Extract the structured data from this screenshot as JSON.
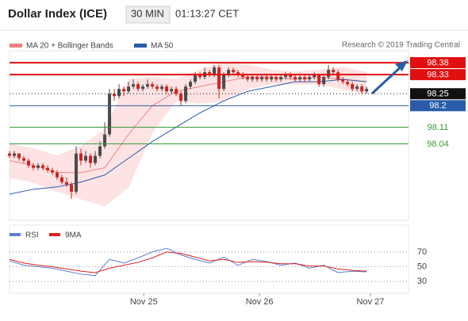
{
  "chart_data": [
    {
      "type": "candlestick",
      "title": "Dollar Index (ICE)",
      "interval": "30 MIN",
      "time": "01:13:27 CET",
      "credit": "Research © 2019 Trading Central",
      "xlim": [
        0,
        83.8
      ],
      "ylim": [
        97.72,
        98.43
      ],
      "up_color": "#4a4a4a",
      "down_color": "#d42020",
      "candles": [
        [
          98.0,
          98.01,
          97.98,
          97.99
        ],
        [
          97.99,
          98.01,
          97.98,
          98.0
        ],
        [
          98.0,
          98.0,
          97.97,
          97.98
        ],
        [
          97.98,
          97.99,
          97.96,
          97.97
        ],
        [
          97.97,
          97.98,
          97.94,
          97.95
        ],
        [
          97.95,
          97.96,
          97.93,
          97.94
        ],
        [
          97.94,
          97.96,
          97.93,
          97.95
        ],
        [
          97.95,
          97.96,
          97.93,
          97.94
        ],
        [
          97.94,
          97.95,
          97.92,
          97.93
        ],
        [
          97.93,
          97.94,
          97.91,
          97.92
        ],
        [
          97.92,
          97.93,
          97.89,
          97.9
        ],
        [
          97.9,
          97.91,
          97.87,
          97.88
        ],
        [
          97.88,
          97.9,
          97.86,
          97.87
        ],
        [
          97.87,
          97.88,
          97.81,
          97.84
        ],
        [
          97.84,
          98.03,
          97.83,
          98.0
        ],
        [
          98.0,
          98.02,
          97.95,
          97.97
        ],
        [
          97.97,
          98.01,
          97.96,
          97.99
        ],
        [
          97.99,
          98.0,
          97.94,
          97.96
        ],
        [
          97.96,
          98.01,
          97.95,
          97.99
        ],
        [
          97.99,
          98.05,
          97.98,
          98.03
        ],
        [
          98.03,
          98.13,
          98.02,
          98.08
        ],
        [
          98.08,
          98.27,
          98.07,
          98.25
        ],
        [
          98.25,
          98.27,
          98.22,
          98.24
        ],
        [
          98.24,
          98.29,
          98.23,
          98.27
        ],
        [
          98.27,
          98.28,
          98.24,
          98.26
        ],
        [
          98.26,
          98.3,
          98.25,
          98.28
        ],
        [
          98.28,
          98.31,
          98.27,
          98.29
        ],
        [
          98.29,
          98.3,
          98.26,
          98.27
        ],
        [
          98.27,
          98.29,
          98.26,
          98.28
        ],
        [
          98.28,
          98.31,
          98.27,
          98.29
        ],
        [
          98.29,
          98.3,
          98.27,
          98.28
        ],
        [
          98.28,
          98.29,
          98.26,
          98.27
        ],
        [
          98.27,
          98.29,
          98.26,
          98.28
        ],
        [
          98.28,
          98.29,
          98.25,
          98.26
        ],
        [
          98.26,
          98.28,
          98.25,
          98.27
        ],
        [
          98.27,
          98.28,
          98.24,
          98.25
        ],
        [
          98.25,
          98.26,
          98.2,
          98.22
        ],
        [
          98.22,
          98.29,
          98.21,
          98.28
        ],
        [
          98.28,
          98.31,
          98.27,
          98.3
        ],
        [
          98.3,
          98.34,
          98.29,
          98.33
        ],
        [
          98.33,
          98.34,
          98.31,
          98.32
        ],
        [
          98.32,
          98.36,
          98.31,
          98.34
        ],
        [
          98.34,
          98.35,
          98.32,
          98.33
        ],
        [
          98.33,
          98.37,
          98.32,
          98.36
        ],
        [
          98.36,
          98.37,
          98.23,
          98.27
        ],
        [
          98.27,
          98.34,
          98.26,
          98.33
        ],
        [
          98.33,
          98.36,
          98.32,
          98.35
        ],
        [
          98.35,
          98.36,
          98.33,
          98.34
        ],
        [
          98.34,
          98.35,
          98.32,
          98.33
        ],
        [
          98.33,
          98.34,
          98.31,
          98.32
        ],
        [
          98.32,
          98.33,
          98.3,
          98.31
        ],
        [
          98.31,
          98.33,
          98.3,
          98.32
        ],
        [
          98.32,
          98.33,
          98.3,
          98.31
        ],
        [
          98.31,
          98.33,
          98.3,
          98.32
        ],
        [
          98.32,
          98.33,
          98.3,
          98.31
        ],
        [
          98.31,
          98.33,
          98.3,
          98.32
        ],
        [
          98.32,
          98.33,
          98.3,
          98.31
        ],
        [
          98.31,
          98.33,
          98.3,
          98.32
        ],
        [
          98.32,
          98.34,
          98.31,
          98.33
        ],
        [
          98.33,
          98.34,
          98.31,
          98.32
        ],
        [
          98.32,
          98.33,
          98.3,
          98.31
        ],
        [
          98.31,
          98.33,
          98.3,
          98.32
        ],
        [
          98.32,
          98.33,
          98.3,
          98.31
        ],
        [
          98.31,
          98.33,
          98.3,
          98.32
        ],
        [
          98.32,
          98.34,
          98.31,
          98.33
        ],
        [
          98.33,
          98.33,
          98.28,
          98.29
        ],
        [
          98.29,
          98.33,
          98.28,
          98.32
        ],
        [
          98.32,
          98.37,
          98.31,
          98.35
        ],
        [
          98.35,
          98.36,
          98.33,
          98.34
        ],
        [
          98.34,
          98.35,
          98.3,
          98.31
        ],
        [
          98.31,
          98.32,
          98.29,
          98.3
        ],
        [
          98.3,
          98.31,
          98.28,
          98.29
        ],
        [
          98.29,
          98.3,
          98.26,
          98.27
        ],
        [
          98.27,
          98.29,
          98.26,
          98.28
        ],
        [
          98.28,
          98.29,
          98.25,
          98.26
        ],
        [
          98.26,
          98.28,
          98.25,
          98.27
        ]
      ],
      "bands": {
        "name": "MA 20 + Bollinger Bands",
        "color": "#f08080",
        "fill": "#fde3e3",
        "x": [
          0,
          5,
          10,
          15,
          20,
          25,
          30,
          35,
          40,
          45,
          50,
          55,
          60,
          65,
          70,
          75
        ],
        "upper": [
          98.04,
          98.02,
          97.99,
          98.03,
          98.1,
          98.31,
          98.32,
          98.31,
          98.35,
          98.38,
          98.37,
          98.35,
          98.34,
          98.35,
          98.36,
          98.34
        ],
        "lower": [
          97.9,
          97.88,
          97.84,
          97.81,
          97.78,
          97.86,
          98.09,
          98.22,
          98.21,
          98.22,
          98.27,
          98.29,
          98.29,
          98.29,
          98.27,
          98.25
        ],
        "ma": [
          97.97,
          97.95,
          97.92,
          97.92,
          97.94,
          98.08,
          98.2,
          98.26,
          98.28,
          98.3,
          98.32,
          98.32,
          98.31,
          98.32,
          98.31,
          98.3
        ]
      },
      "ma50": {
        "name": "MA 50",
        "color": "#2a5caa",
        "x": [
          0,
          5,
          10,
          15,
          20,
          25,
          30,
          35,
          40,
          45,
          50,
          55,
          60,
          65,
          70,
          75
        ],
        "values": [
          97.83,
          97.85,
          97.86,
          97.88,
          97.91,
          97.98,
          98.05,
          98.11,
          98.17,
          98.22,
          98.26,
          98.28,
          98.3,
          98.3,
          98.31,
          98.3
        ]
      },
      "levels": [
        {
          "value": 98.38,
          "color": "#e01010",
          "style": "solid",
          "boxed": true
        },
        {
          "value": 98.33,
          "color": "#e01010",
          "style": "solid",
          "boxed": true
        },
        {
          "value": 98.25,
          "color": "#111111",
          "style": "dotted",
          "boxed": true
        },
        {
          "value": 98.2,
          "color": "#2a5caa",
          "style": "solid",
          "boxed": true
        },
        {
          "value": 98.11,
          "color": "#3a9a3a",
          "style": "solid",
          "boxed": false
        },
        {
          "value": 98.04,
          "color": "#3a9a3a",
          "style": "solid",
          "boxed": false
        }
      ]
    },
    {
      "type": "line",
      "xlim": [
        0,
        83.8
      ],
      "ylim": [
        14,
        100
      ],
      "yticks": [
        30,
        50,
        70
      ],
      "xticks": [
        {
          "value": 28.2,
          "label": "Nov 25"
        },
        {
          "value": 52.5,
          "label": "Nov 26"
        },
        {
          "value": 75.8,
          "label": "Nov 27"
        }
      ],
      "x": [
        0,
        3,
        6,
        9,
        12,
        15,
        18,
        21,
        24,
        27,
        30,
        33,
        36,
        39,
        42,
        45,
        48,
        51,
        54,
        57,
        60,
        63,
        66,
        69,
        72,
        75
      ],
      "series": [
        {
          "name": "RSI",
          "color": "#5b7fd0",
          "values": [
            58,
            52,
            50,
            48,
            44,
            40,
            38,
            60,
            55,
            62,
            70,
            75,
            66,
            60,
            55,
            63,
            52,
            60,
            57,
            52,
            55,
            48,
            52,
            42,
            44,
            43
          ]
        },
        {
          "name": "9MA",
          "color": "#e02020",
          "values": [
            60,
            55,
            52,
            50,
            47,
            44,
            42,
            48,
            52,
            56,
            62,
            70,
            68,
            63,
            58,
            60,
            56,
            57,
            56,
            54,
            54,
            51,
            51,
            47,
            45,
            44
          ]
        }
      ]
    }
  ]
}
